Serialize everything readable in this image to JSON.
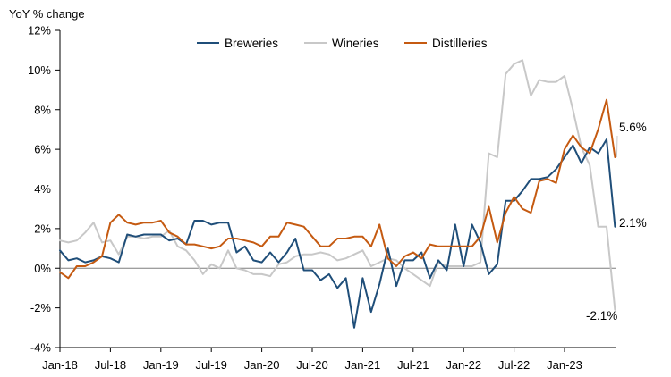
{
  "chart_data": {
    "type": "line",
    "title": "",
    "ylabel": "YoY % change",
    "xlabel": "",
    "ylim": [
      -4,
      12
    ],
    "y_ticks": [
      -4,
      -2,
      0,
      2,
      4,
      6,
      8,
      10,
      12
    ],
    "y_tick_labels": [
      "-4%",
      "-2%",
      "0%",
      "2%",
      "4%",
      "6%",
      "8%",
      "10%",
      "12%"
    ],
    "x_tick_labels": [
      "Jan-18",
      "Jul-18",
      "Jan-19",
      "Jul-19",
      "Jan-20",
      "Jul-20",
      "Jan-21",
      "Jul-21",
      "Jan-22",
      "Jul-22",
      "Jan-23"
    ],
    "x_start": "Jan-18",
    "x_frequency": "monthly",
    "grid": false,
    "zero_line": true,
    "legend_position": "top-center",
    "series": [
      {
        "name": "Breweries",
        "color": "#1f4e79",
        "values": [
          0.9,
          0.4,
          0.5,
          0.3,
          0.4,
          0.6,
          0.5,
          0.3,
          1.7,
          1.6,
          1.7,
          1.7,
          1.7,
          1.4,
          1.5,
          1.2,
          2.4,
          2.4,
          2.2,
          2.3,
          2.3,
          0.8,
          1.1,
          0.4,
          0.3,
          0.8,
          0.3,
          0.8,
          1.5,
          -0.1,
          -0.1,
          -0.6,
          -0.3,
          -1.0,
          -0.5,
          -3.0,
          -0.5,
          -2.2,
          -0.8,
          1.0,
          -0.9,
          0.4,
          0.4,
          0.8,
          -0.5,
          0.4,
          -0.1,
          2.2,
          0.1,
          2.2,
          1.3,
          -0.3,
          0.2,
          3.4,
          3.4,
          3.9,
          4.5,
          4.5,
          4.6,
          5.0,
          5.6,
          6.2,
          5.3,
          6.1,
          5.8,
          6.5,
          2.1
        ],
        "end_label": "2.1%"
      },
      {
        "name": "Wineries",
        "color": "#c8c8c8",
        "values": [
          1.4,
          1.3,
          1.4,
          1.8,
          2.3,
          1.3,
          1.4,
          0.7,
          1.6,
          1.6,
          1.5,
          1.6,
          1.6,
          1.9,
          1.1,
          0.9,
          0.4,
          -0.3,
          0.2,
          0.0,
          0.9,
          0.0,
          -0.1,
          -0.3,
          -0.3,
          -0.4,
          0.2,
          0.3,
          0.6,
          0.7,
          0.7,
          0.8,
          0.7,
          0.4,
          0.5,
          0.7,
          0.9,
          0.1,
          0.3,
          0.5,
          0.4,
          0.0,
          -0.3,
          -0.6,
          -0.9,
          0.3,
          0.1,
          0.1,
          0.1,
          0.1,
          0.3,
          5.8,
          5.6,
          9.8,
          10.3,
          10.5,
          8.7,
          9.5,
          9.4,
          9.4,
          9.7,
          8.0,
          6.1,
          5.2,
          2.1,
          2.1,
          -2.1
        ],
        "end_label": "-2.1%"
      },
      {
        "name": "Distilleries",
        "color": "#c55a11",
        "values": [
          -0.2,
          -0.5,
          0.1,
          0.1,
          0.3,
          0.6,
          2.3,
          2.7,
          2.3,
          2.2,
          2.3,
          2.3,
          2.4,
          1.8,
          1.6,
          1.2,
          1.2,
          1.1,
          1.0,
          1.1,
          1.5,
          1.5,
          1.4,
          1.3,
          1.1,
          1.6,
          1.6,
          2.3,
          2.2,
          2.1,
          1.6,
          1.1,
          1.1,
          1.5,
          1.5,
          1.6,
          1.6,
          1.1,
          2.2,
          0.5,
          0.1,
          0.6,
          0.8,
          0.5,
          1.2,
          1.1,
          1.1,
          1.1,
          1.1,
          1.1,
          1.6,
          3.1,
          1.3,
          2.8,
          3.6,
          3.0,
          2.8,
          4.4,
          4.5,
          4.3,
          6.0,
          6.7,
          6.1,
          5.8,
          7.0,
          8.5,
          5.6
        ],
        "end_label": "5.6%"
      }
    ]
  }
}
